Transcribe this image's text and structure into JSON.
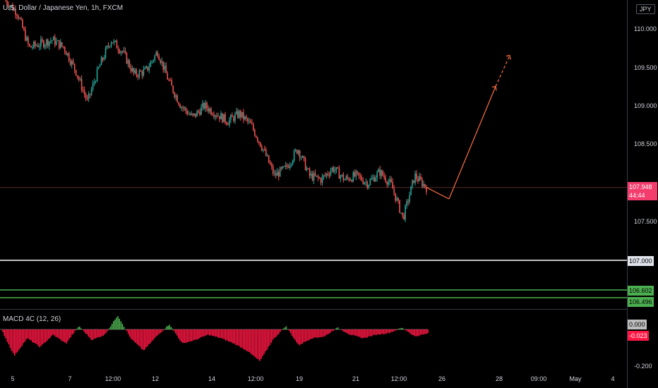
{
  "header": {
    "title": "U.S. Dollar / Japanese Yen, 1h, FXCM"
  },
  "currency_button": "JPY",
  "price_axis": {
    "ticks": [
      "110.000",
      "109.500",
      "109.000",
      "108.500",
      "107.500"
    ]
  },
  "current_price": {
    "value": "107.948",
    "countdown": "44:44"
  },
  "levels": [
    {
      "label": "107.000",
      "color": "#ffffff"
    },
    {
      "label": "106.602",
      "color": "#4caf50"
    },
    {
      "label": "106.496",
      "color": "#4caf50"
    }
  ],
  "macd": {
    "label": "MACD 4C (12, 26)",
    "zero_label": "0.000",
    "value_label": "-0.023",
    "bottom_label": "-0.200"
  },
  "time_axis": {
    "ticks": [
      "5",
      "7",
      "12:00",
      "12",
      "14",
      "12:00",
      "19",
      "21",
      "12:00",
      "26",
      "28",
      "09:00",
      "May",
      "4"
    ]
  },
  "chart_data": {
    "type": "candlestick",
    "title": "U.S. Dollar / Japanese Yen, 1h, FXCM",
    "xlabel": "",
    "ylabel": "",
    "ylim": [
      107.4,
      110.4
    ],
    "price_path": [
      110.35,
      110.2,
      109.75,
      109.8,
      109.85,
      109.75,
      109.45,
      109.05,
      109.5,
      109.85,
      109.7,
      109.4,
      109.45,
      109.7,
      109.3,
      109.0,
      108.85,
      109.0,
      108.9,
      108.8,
      108.9,
      108.75,
      108.45,
      108.1,
      108.2,
      108.45,
      108.1,
      108.05,
      108.2,
      108.05,
      108.1,
      108.0,
      108.15,
      107.98,
      107.55,
      108.1,
      107.95
    ],
    "current_price": 107.948,
    "forecast_path": [
      [
        107.948,
        107.8
      ],
      [
        107.8,
        109.25
      ],
      [
        109.25,
        109.65
      ]
    ],
    "horizontal_levels": [
      107.0,
      106.602,
      106.496
    ],
    "macd_ylim": [
      -0.2,
      0.1
    ],
    "macd_path": [
      0.0,
      -0.15,
      -0.05,
      -0.1,
      -0.03,
      -0.08,
      0.02,
      -0.06,
      -0.03,
      0.08,
      -0.05,
      -0.12,
      -0.04,
      0.03,
      -0.08,
      -0.06,
      -0.03,
      -0.05,
      -0.08,
      -0.12,
      -0.18,
      -0.06,
      0.02,
      -0.09,
      -0.05,
      -0.04,
      0.01,
      -0.03,
      -0.05,
      -0.03,
      -0.02,
      0.01,
      -0.04,
      -0.023
    ],
    "grid": false
  }
}
